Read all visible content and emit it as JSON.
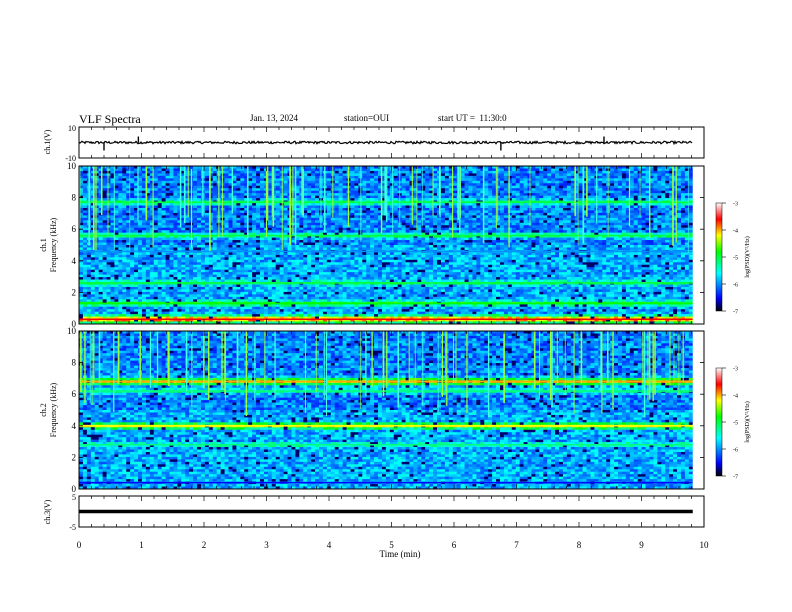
{
  "header": {
    "title": "VLF Spectra",
    "date": "Jan. 13, 2024",
    "station": "station=OUI",
    "start": "start UT =  11:30:0"
  },
  "panels": {
    "ch1": {
      "ylabel": "ch.1(V)",
      "yticks": [
        "10",
        "-10"
      ]
    },
    "spec1": {
      "ylabel_top": "ch.1",
      "ylabel": "Frequency (kHz)"
    },
    "spec2": {
      "ylabel_top": "ch.2",
      "ylabel": "Frequency (kHz)"
    },
    "ch3": {
      "ylabel": "ch.3(V)",
      "yticks": [
        "5",
        "-5"
      ]
    }
  },
  "colorbar": {
    "label": "log(PSD)(V²/Hz)",
    "ticks": [
      "-3",
      "-4",
      "-5",
      "-6",
      "-7"
    ],
    "colors": [
      "#000000",
      "#0000ff",
      "#00ffff",
      "#00ff00",
      "#ffff00",
      "#ff0000",
      "#ffffff"
    ]
  },
  "chart_data": [
    {
      "type": "line",
      "title": "VLF Spectra",
      "ylabel": "ch.1(V)",
      "xlabel": "Time (min)",
      "xlim": [
        0,
        10
      ],
      "ylim": [
        -10,
        10
      ],
      "baseline": 0,
      "spikes_min": [
        0.4,
        0.95,
        6.75,
        8.4
      ]
    },
    {
      "type": "heatmap",
      "ylabel": "ch.1 Frequency (kHz)",
      "xlabel": "Time (min)",
      "xlim": [
        0,
        10
      ],
      "ylim": [
        0,
        10
      ],
      "yticks": [
        0,
        2,
        4,
        6,
        8,
        10
      ],
      "data_extent_x": [
        0,
        9.82
      ],
      "color_scale": {
        "label": "log(PSD)(V²/Hz)",
        "min": -7,
        "max": -3
      },
      "bands_khz": [
        {
          "freq": 0.3,
          "level": -3.6
        },
        {
          "freq": 1.3,
          "level": -4.8
        },
        {
          "freq": 2.6,
          "level": -5.0
        },
        {
          "freq": 4.6,
          "level": -6.0
        },
        {
          "freq": 5.6,
          "level": -5.0
        },
        {
          "freq": 7.7,
          "level": -5.0
        }
      ]
    },
    {
      "type": "heatmap",
      "ylabel": "ch.2 Frequency (kHz)",
      "xlabel": "Time (min)",
      "xlim": [
        0,
        10
      ],
      "ylim": [
        0,
        10
      ],
      "yticks": [
        0,
        2,
        4,
        6,
        8,
        10
      ],
      "data_extent_x": [
        0,
        9.82
      ],
      "color_scale": {
        "label": "log(PSD)(V²/Hz)",
        "min": -7,
        "max": -3
      },
      "bands_khz": [
        {
          "freq": 0.4,
          "level": -6.5
        },
        {
          "freq": 2.8,
          "level": -5.2
        },
        {
          "freq": 4.0,
          "level": -4.2
        },
        {
          "freq": 6.2,
          "level": -5.2
        },
        {
          "freq": 6.8,
          "level": -4.0
        }
      ]
    },
    {
      "type": "line",
      "ylabel": "ch.3(V)",
      "xlabel": "Time (min)",
      "xlim": [
        0,
        10
      ],
      "ylim": [
        -5,
        5
      ],
      "baseline": 0
    }
  ],
  "xaxis": {
    "label": "Time (min)",
    "ticks": [
      "0",
      "1",
      "2",
      "3",
      "4",
      "5",
      "6",
      "7",
      "8",
      "9",
      "10"
    ]
  }
}
